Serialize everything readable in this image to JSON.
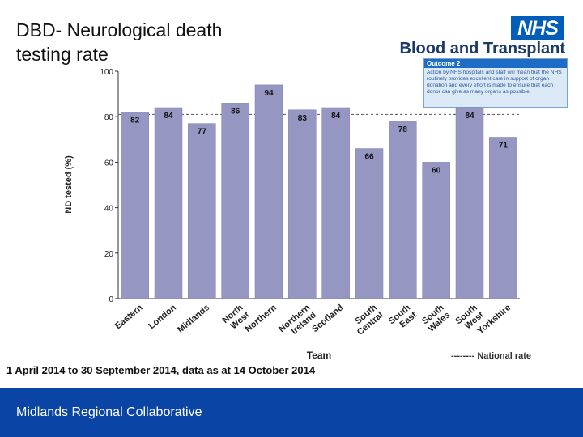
{
  "header": {
    "title": "DBD- Neurological death\ntesting rate",
    "logo_text": "NHS",
    "org_name": "Blood and Transplant",
    "outcome": {
      "heading": "Outcome 2",
      "text": "Action by NHS hospitals and staff will mean that the NHS routinely provides excellent care in support of organ donation and every effort is made to ensure that each donor can give as many organs as possible."
    }
  },
  "chart_data": {
    "type": "bar",
    "title": "",
    "xlabel": "Team",
    "ylabel": "ND tested (%)",
    "ylim": [
      0,
      100
    ],
    "yticks": [
      0,
      20,
      40,
      60,
      80,
      100
    ],
    "categories": [
      "Eastern",
      "London",
      "Midlands",
      "North West",
      "Northern",
      "Northern Ireland",
      "Scotland",
      "South Central",
      "South East",
      "South Wales",
      "South West",
      "Yorkshire"
    ],
    "values": [
      82,
      84,
      77,
      86,
      94,
      83,
      84,
      66,
      78,
      60,
      84,
      71
    ],
    "national_rate": 81,
    "legend_label": "-------- National rate",
    "legend_position": "bottom-right",
    "bar_color": "#9696c2",
    "grid": false
  },
  "caption": "1 April 2014 to 30 September 2014, data as at 14 October 2014",
  "footer": {
    "text": "Midlands Regional Collaborative"
  },
  "colors": {
    "nhs_blue": "#005eb8",
    "footer_blue": "#0a45a5",
    "bar": "#9696c2"
  }
}
